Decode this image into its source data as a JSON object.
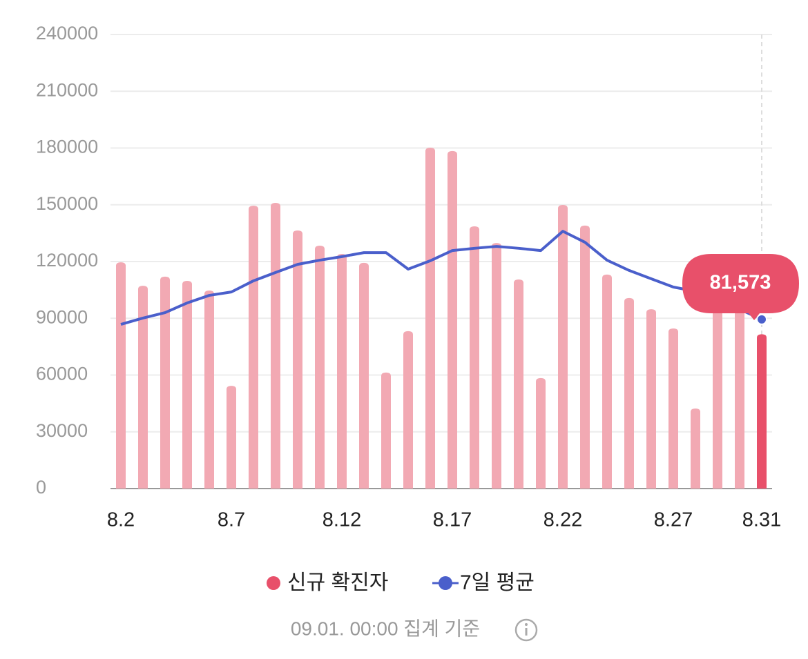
{
  "chart_data": {
    "type": "bar_line",
    "categories": [
      "8.2",
      null,
      null,
      null,
      null,
      "8.7",
      null,
      null,
      null,
      null,
      "8.12",
      null,
      null,
      null,
      null,
      "8.17",
      null,
      null,
      null,
      null,
      "8.22",
      null,
      null,
      null,
      null,
      "8.27",
      null,
      null,
      null,
      "8.31"
    ],
    "series": [
      {
        "name": "신규 확진자",
        "type": "bar",
        "color": "#f2a9b3",
        "highlight_color": "#e8506a",
        "values": [
          119600,
          107200,
          112000,
          109800,
          104700,
          54300,
          149500,
          151000,
          136400,
          128400,
          124000,
          119300,
          61300,
          83200,
          180200,
          178400,
          138600,
          129800,
          110500,
          58400,
          149900,
          139000,
          113100,
          100700,
          94800,
          84600,
          42300,
          98000,
          94000,
          81573
        ],
        "value_labels": [
          null,
          null,
          null,
          null,
          null,
          null,
          null,
          null,
          null,
          null,
          null,
          null,
          null,
          null,
          null,
          null,
          null,
          null,
          null,
          null,
          null,
          null,
          null,
          null,
          null,
          null,
          null,
          null,
          null,
          "81,573"
        ]
      },
      {
        "name": "7일 평균",
        "type": "line",
        "color": "#4a5fcb",
        "values": [
          86800,
          90100,
          93000,
          98100,
          102100,
          103900,
          109800,
          114200,
          118500,
          120700,
          122600,
          124700,
          124700,
          116000,
          120400,
          125800,
          127000,
          128000,
          127000,
          125800,
          136000,
          130200,
          120700,
          115300,
          110900,
          106500,
          104300,
          100700,
          94800,
          89400
        ]
      }
    ],
    "ylim": [
      0,
      240000
    ],
    "yticks": [
      0,
      30000,
      60000,
      90000,
      120000,
      150000,
      180000,
      210000,
      240000
    ],
    "grid": true,
    "legend": "bottom",
    "footnote": "09.01. 00:00 집계 기준"
  }
}
